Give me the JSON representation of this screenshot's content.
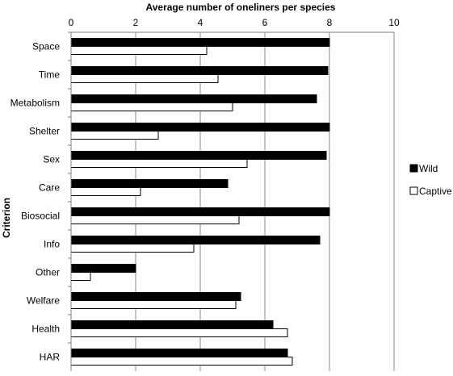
{
  "chart_data": {
    "type": "bar",
    "orientation": "horizontal",
    "title": "Average number of oneliners  per species",
    "ylabel": "Criterion",
    "xlim": [
      0,
      10
    ],
    "xticks": [
      "0",
      "2",
      "4",
      "6",
      "8",
      "10"
    ],
    "x_axis_position": "top",
    "grid": "vertical gridlines",
    "legend_position": "right",
    "categories": [
      "Space",
      "Time",
      "Metabolism",
      "Shelter",
      "Sex",
      "Care",
      "Biosocial",
      "Info",
      "Other",
      "Welfare",
      "Health",
      "HAR"
    ],
    "series": [
      {
        "name": "Wild",
        "color": "#000000",
        "values": [
          8.0,
          7.95,
          7.6,
          8.0,
          7.9,
          4.85,
          8.0,
          7.7,
          2.0,
          5.25,
          6.25,
          6.7
        ]
      },
      {
        "name": "Captive",
        "color": "#ffffff",
        "values": [
          4.2,
          4.55,
          5.0,
          2.7,
          5.45,
          2.15,
          5.2,
          3.8,
          0.6,
          5.1,
          6.7,
          6.85
        ]
      }
    ]
  }
}
